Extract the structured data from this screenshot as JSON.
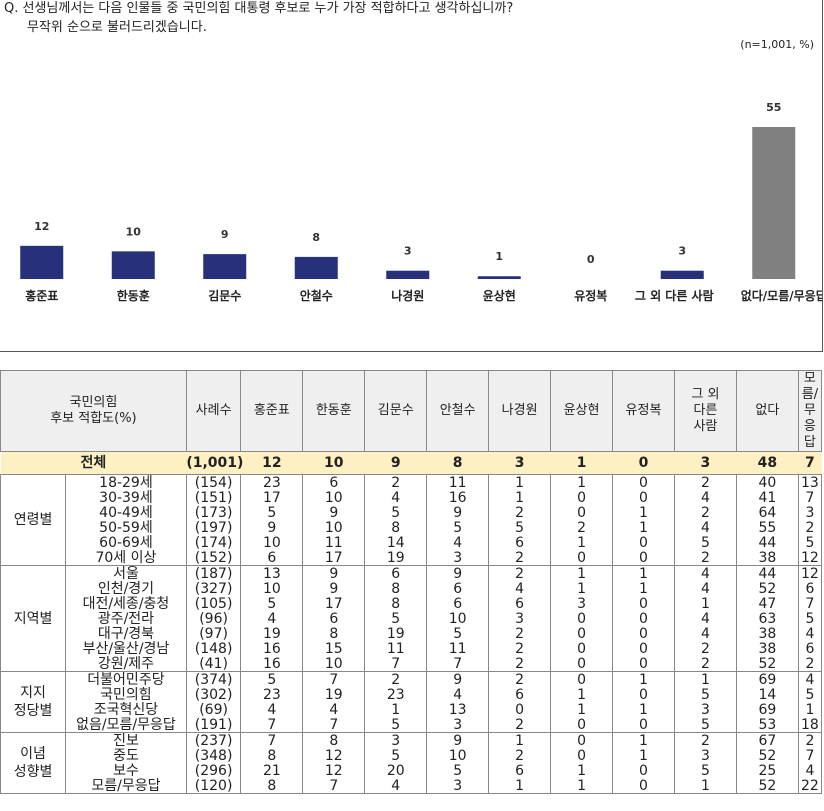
{
  "question": {
    "line1": "Q. 선생님께서는 다음 인물들 중 국민의힘 대통령 후보로 누가 가장 적합하다고 생각하십니까?",
    "line2": "무작위 순으로 불러드리겠습니다."
  },
  "note": "(n=1,001, %)",
  "chart_data": {
    "type": "bar",
    "categories": [
      "홍준표",
      "한동훈",
      "김문수",
      "안철수",
      "나경원",
      "윤상현",
      "유정복",
      "그 외 다른 사람",
      "없다/모름/무응답"
    ],
    "values": [
      12,
      10,
      9,
      8,
      3,
      1,
      0,
      3,
      55
    ],
    "colors": [
      "#27307a",
      "#27307a",
      "#27307a",
      "#27307a",
      "#27307a",
      "#27307a",
      "#27307a",
      "#27307a",
      "#808080"
    ],
    "ylim": [
      0,
      60
    ],
    "title": "",
    "xlabel": "",
    "ylabel": ""
  },
  "table": {
    "header": {
      "group": "국민의힘\n후보 적합도(%)",
      "count": "사례수",
      "cols": [
        "홍준표",
        "한동훈",
        "김문수",
        "안철수",
        "나경원",
        "윤상현",
        "유정복",
        "그 외\n다른\n사람",
        "없다",
        "모름/\n무응답"
      ]
    },
    "total": {
      "label": "전체",
      "count": "(1,001)",
      "values": [
        "12",
        "10",
        "9",
        "8",
        "3",
        "1",
        "0",
        "3",
        "48",
        "7"
      ]
    },
    "groups": [
      {
        "name": "연령별",
        "rows": [
          {
            "label": "18-29세",
            "count": "(154)",
            "values": [
              "23",
              "6",
              "2",
              "11",
              "1",
              "1",
              "0",
              "2",
              "40",
              "13"
            ]
          },
          {
            "label": "30-39세",
            "count": "(151)",
            "values": [
              "17",
              "10",
              "4",
              "16",
              "1",
              "0",
              "0",
              "4",
              "41",
              "7"
            ]
          },
          {
            "label": "40-49세",
            "count": "(173)",
            "values": [
              "5",
              "9",
              "5",
              "9",
              "2",
              "0",
              "1",
              "2",
              "64",
              "3"
            ]
          },
          {
            "label": "50-59세",
            "count": "(197)",
            "values": [
              "9",
              "10",
              "8",
              "5",
              "5",
              "2",
              "1",
              "4",
              "55",
              "2"
            ]
          },
          {
            "label": "60-69세",
            "count": "(174)",
            "values": [
              "10",
              "11",
              "14",
              "4",
              "6",
              "1",
              "0",
              "5",
              "44",
              "5"
            ]
          },
          {
            "label": "70세 이상",
            "count": "(152)",
            "values": [
              "6",
              "17",
              "19",
              "3",
              "2",
              "0",
              "0",
              "2",
              "38",
              "12"
            ]
          }
        ]
      },
      {
        "name": "지역별",
        "rows": [
          {
            "label": "서울",
            "count": "(187)",
            "values": [
              "13",
              "9",
              "6",
              "9",
              "2",
              "1",
              "1",
              "4",
              "44",
              "12"
            ]
          },
          {
            "label": "인천/경기",
            "count": "(327)",
            "values": [
              "10",
              "9",
              "8",
              "6",
              "4",
              "1",
              "1",
              "4",
              "52",
              "6"
            ]
          },
          {
            "label": "대전/세종/충청",
            "count": "(105)",
            "values": [
              "5",
              "17",
              "8",
              "6",
              "6",
              "3",
              "0",
              "1",
              "47",
              "7"
            ]
          },
          {
            "label": "광주/전라",
            "count": "(96)",
            "values": [
              "4",
              "6",
              "5",
              "10",
              "3",
              "0",
              "0",
              "4",
              "63",
              "5"
            ]
          },
          {
            "label": "대구/경북",
            "count": "(97)",
            "values": [
              "19",
              "8",
              "19",
              "5",
              "2",
              "0",
              "0",
              "4",
              "38",
              "4"
            ]
          },
          {
            "label": "부산/울산/경남",
            "count": "(148)",
            "values": [
              "16",
              "15",
              "11",
              "11",
              "2",
              "0",
              "0",
              "2",
              "38",
              "6"
            ]
          },
          {
            "label": "강원/제주",
            "count": "(41)",
            "values": [
              "16",
              "10",
              "7",
              "7",
              "2",
              "0",
              "0",
              "2",
              "52",
              "2"
            ]
          }
        ]
      },
      {
        "name": "지지\n정당별",
        "rows": [
          {
            "label": "더불어민주당",
            "count": "(374)",
            "values": [
              "5",
              "7",
              "2",
              "9",
              "2",
              "0",
              "1",
              "1",
              "69",
              "4"
            ]
          },
          {
            "label": "국민의힘",
            "count": "(302)",
            "values": [
              "23",
              "19",
              "23",
              "4",
              "6",
              "1",
              "0",
              "5",
              "14",
              "5"
            ]
          },
          {
            "label": "조국혁신당",
            "count": "(69)",
            "values": [
              "4",
              "4",
              "1",
              "13",
              "0",
              "1",
              "1",
              "3",
              "69",
              "1"
            ]
          },
          {
            "label": "없음/모름/무응답",
            "count": "(191)",
            "values": [
              "7",
              "7",
              "5",
              "3",
              "2",
              "0",
              "0",
              "5",
              "53",
              "18"
            ]
          }
        ]
      },
      {
        "name": "이념\n성향별",
        "rows": [
          {
            "label": "진보",
            "count": "(237)",
            "values": [
              "7",
              "8",
              "3",
              "9",
              "1",
              "0",
              "1",
              "2",
              "67",
              "2"
            ]
          },
          {
            "label": "중도",
            "count": "(348)",
            "values": [
              "8",
              "12",
              "5",
              "10",
              "2",
              "0",
              "1",
              "3",
              "52",
              "7"
            ]
          },
          {
            "label": "보수",
            "count": "(296)",
            "values": [
              "21",
              "12",
              "20",
              "5",
              "6",
              "1",
              "0",
              "5",
              "25",
              "4"
            ]
          },
          {
            "label": "모름/무응답",
            "count": "(120)",
            "values": [
              "8",
              "7",
              "4",
              "3",
              "1",
              "1",
              "0",
              "1",
              "52",
              "22"
            ]
          }
        ]
      }
    ]
  }
}
